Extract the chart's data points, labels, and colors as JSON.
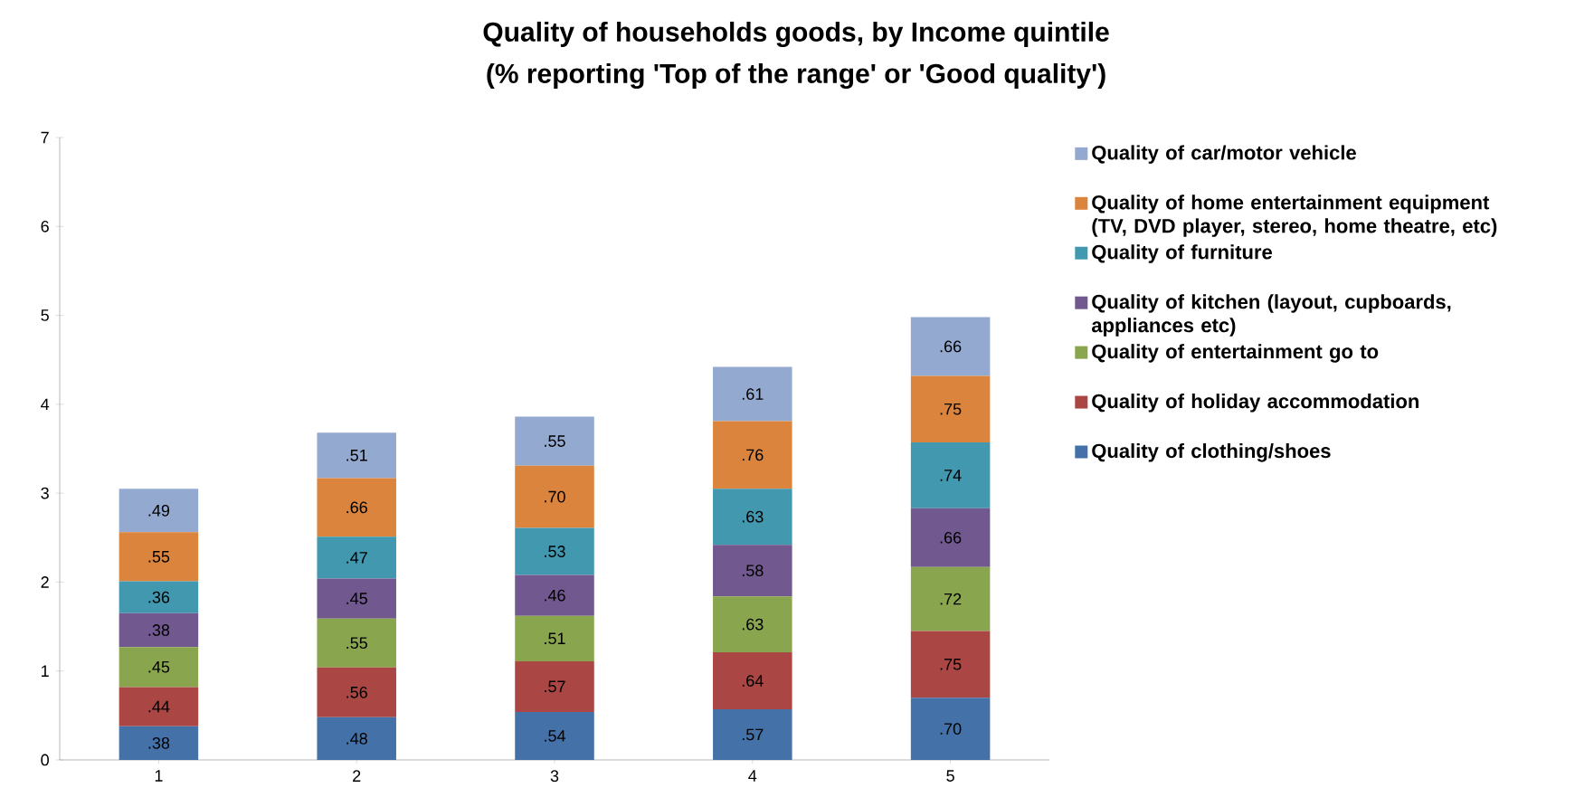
{
  "chart_data": {
    "type": "bar",
    "stacked": true,
    "title": "Quality of households goods, by Income quintile",
    "subtitle": "(% reporting 'Top of the range' or 'Good quality')",
    "categories": [
      "1",
      "2",
      "3",
      "4",
      "5"
    ],
    "ylim": [
      0,
      7
    ],
    "yticks": [
      0,
      1,
      2,
      3,
      4,
      5,
      6,
      7
    ],
    "grid": false,
    "legend": "right",
    "series": [
      {
        "name": "Quality of clothing/shoes",
        "color": "#4472a8",
        "values": [
          0.38,
          0.48,
          0.54,
          0.57,
          0.7
        ],
        "value_labels": [
          ".38",
          ".48",
          ".54",
          ".57",
          ".70"
        ]
      },
      {
        "name": "Quality of holiday accommodation",
        "color": "#aa4643",
        "values": [
          0.44,
          0.56,
          0.57,
          0.64,
          0.75
        ],
        "value_labels": [
          ".44",
          ".56",
          ".57",
          ".64",
          ".75"
        ]
      },
      {
        "name": "Quality of entertainment go to",
        "color": "#89a54e",
        "values": [
          0.45,
          0.55,
          0.51,
          0.63,
          0.72
        ],
        "value_labels": [
          ".45",
          ".55",
          ".51",
          ".63",
          ".72"
        ]
      },
      {
        "name": "Quality of kitchen (layout, cupboards, appliances etc)",
        "color": "#71588f",
        "values": [
          0.38,
          0.45,
          0.46,
          0.58,
          0.66
        ],
        "value_labels": [
          ".38",
          ".45",
          ".46",
          ".58",
          ".66"
        ]
      },
      {
        "name": "Quality of furniture",
        "color": "#4198af",
        "values": [
          0.36,
          0.47,
          0.53,
          0.63,
          0.74
        ],
        "value_labels": [
          ".36",
          ".47",
          ".53",
          ".63",
          ".74"
        ]
      },
      {
        "name": "Quality of home entertainment equipment (TV, DVD player, stereo, home theatre, etc)",
        "color": "#db843d",
        "values": [
          0.55,
          0.66,
          0.7,
          0.76,
          0.75
        ],
        "value_labels": [
          ".55",
          ".66",
          ".70",
          ".76",
          ".75"
        ]
      },
      {
        "name": "Quality of car/motor vehicle",
        "color": "#93a9cf",
        "values": [
          0.49,
          0.51,
          0.55,
          0.61,
          0.66
        ],
        "value_labels": [
          ".49",
          ".51",
          ".55",
          ".61",
          ".66"
        ]
      }
    ]
  }
}
